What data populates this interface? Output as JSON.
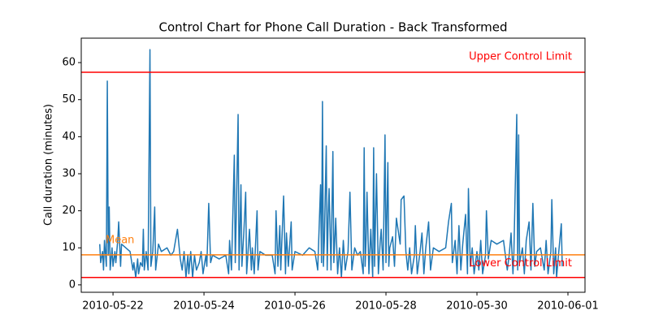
{
  "chart_data": {
    "type": "line",
    "title": "Control Chart for Phone Call Duration - Back Transformed",
    "y_label": "Call duration (minutes)",
    "x": [
      "2010-05-21T17:00",
      "2010-05-21T17:30",
      "2010-05-21T18:30",
      "2010-05-21T19:00",
      "2010-05-21T19:30",
      "2010-05-21T20:30",
      "2010-05-21T21:00",
      "2010-05-21T21:30",
      "2010-05-21T22:00",
      "2010-05-21T22:30",
      "2010-05-21T23:30",
      "2010-05-22T00:00",
      "2010-05-22T01:00",
      "2010-05-22T01:30",
      "2010-05-22T02:30",
      "2010-05-22T03:00",
      "2010-05-22T04:00",
      "2010-05-22T04:30",
      "2010-05-22T09:00",
      "2010-05-22T10:30",
      "2010-05-22T11:00",
      "2010-05-22T12:00",
      "2010-05-22T13:00",
      "2010-05-22T13:30",
      "2010-05-22T14:30",
      "2010-05-22T15:30",
      "2010-05-22T16:00",
      "2010-05-22T16:30",
      "2010-05-22T17:30",
      "2010-05-22T18:30",
      "2010-05-22T19:30",
      "2010-05-22T20:00",
      "2010-05-22T21:00",
      "2010-05-22T22:00",
      "2010-05-22T22:30",
      "2010-05-23T00:00",
      "2010-05-23T01:30",
      "2010-05-23T04:30",
      "2010-05-23T06:30",
      "2010-05-23T08:00",
      "2010-05-23T10:00",
      "2010-05-23T11:30",
      "2010-05-23T12:30",
      "2010-05-23T13:30",
      "2010-05-23T14:30",
      "2010-05-23T15:30",
      "2010-05-23T16:00",
      "2010-05-23T17:00",
      "2010-05-23T18:00",
      "2010-05-23T19:00",
      "2010-05-23T20:00",
      "2010-05-23T21:30",
      "2010-05-23T22:30",
      "2010-05-23T23:30",
      "2010-05-24T01:00",
      "2010-05-24T01:30",
      "2010-05-24T02:30",
      "2010-05-24T03:30",
      "2010-05-24T04:30",
      "2010-05-24T08:00",
      "2010-05-24T11:30",
      "2010-05-24T13:00",
      "2010-05-24T13:30",
      "2010-05-24T14:30",
      "2010-05-24T16:00",
      "2010-05-24T16:30",
      "2010-05-24T17:00",
      "2010-05-24T18:00",
      "2010-05-24T18:30",
      "2010-05-24T19:30",
      "2010-05-24T20:00",
      "2010-05-24T21:00",
      "2010-05-24T22:00",
      "2010-05-24T22:30",
      "2010-05-25T00:00",
      "2010-05-25T01:00",
      "2010-05-25T01:30",
      "2010-05-25T02:30",
      "2010-05-25T04:00",
      "2010-05-25T04:30",
      "2010-05-25T05:30",
      "2010-05-25T08:30",
      "2010-05-25T12:00",
      "2010-05-25T13:30",
      "2010-05-25T14:00",
      "2010-05-25T15:00",
      "2010-05-25T16:00",
      "2010-05-25T16:30",
      "2010-05-25T18:00",
      "2010-05-25T19:00",
      "2010-05-25T19:30",
      "2010-05-25T20:30",
      "2010-05-25T22:00",
      "2010-05-25T22:30",
      "2010-05-26T00:00",
      "2010-05-26T04:00",
      "2010-05-26T07:30",
      "2010-05-26T10:30",
      "2010-05-26T12:00",
      "2010-05-26T13:30",
      "2010-05-26T14:00",
      "2010-05-26T14:30",
      "2010-05-26T15:00",
      "2010-05-26T15:30",
      "2010-05-26T16:30",
      "2010-05-26T17:00",
      "2010-05-26T17:30",
      "2010-05-26T18:00",
      "2010-05-26T19:00",
      "2010-05-26T20:00",
      "2010-05-26T20:30",
      "2010-05-26T21:30",
      "2010-05-26T22:30",
      "2010-05-26T23:30",
      "2010-05-27T00:30",
      "2010-05-27T01:30",
      "2010-05-27T02:30",
      "2010-05-27T04:00",
      "2010-05-27T05:00",
      "2010-05-27T06:00",
      "2010-05-27T07:30",
      "2010-05-27T09:00",
      "2010-05-27T10:30",
      "2010-05-27T12:00",
      "2010-05-27T12:30",
      "2010-05-27T13:00",
      "2010-05-27T13:30",
      "2010-05-27T14:00",
      "2010-05-27T15:00",
      "2010-05-27T16:00",
      "2010-05-27T17:00",
      "2010-05-27T17:30",
      "2010-05-27T18:00",
      "2010-05-27T18:30",
      "2010-05-27T19:00",
      "2010-05-27T20:00",
      "2010-05-27T21:00",
      "2010-05-27T21:30",
      "2010-05-27T22:30",
      "2010-05-27T23:30",
      "2010-05-28T00:00",
      "2010-05-28T01:00",
      "2010-05-28T01:30",
      "2010-05-28T02:00",
      "2010-05-28T03:30",
      "2010-05-28T04:30",
      "2010-05-28T05:30",
      "2010-05-28T07:30",
      "2010-05-28T08:00",
      "2010-05-28T09:30",
      "2010-05-28T10:30",
      "2010-05-28T11:30",
      "2010-05-28T12:30",
      "2010-05-28T13:30",
      "2010-05-28T15:00",
      "2010-05-28T15:30",
      "2010-05-28T16:30",
      "2010-05-28T18:00",
      "2010-05-28T19:00",
      "2010-05-28T20:00",
      "2010-05-28T21:00",
      "2010-05-28T22:30",
      "2010-05-28T23:30",
      "2010-05-29T01:00",
      "2010-05-29T04:00",
      "2010-05-29T07:30",
      "2010-05-29T09:00",
      "2010-05-29T10:30",
      "2010-05-29T11:00",
      "2010-05-29T12:30",
      "2010-05-29T13:30",
      "2010-05-29T14:30",
      "2010-05-29T15:30",
      "2010-05-29T16:30",
      "2010-05-29T18:00",
      "2010-05-29T19:00",
      "2010-05-29T19:30",
      "2010-05-29T20:30",
      "2010-05-29T21:30",
      "2010-05-29T22:30",
      "2010-05-30T00:00",
      "2010-05-30T01:00",
      "2010-05-30T02:00",
      "2010-05-30T03:00",
      "2010-05-30T04:30",
      "2010-05-30T05:00",
      "2010-05-30T06:00",
      "2010-05-30T07:30",
      "2010-05-30T10:30",
      "2010-05-30T14:00",
      "2010-05-30T16:00",
      "2010-05-30T17:00",
      "2010-05-30T18:00",
      "2010-05-30T19:00",
      "2010-05-30T19:30",
      "2010-05-30T21:00",
      "2010-05-30T21:30",
      "2010-05-30T22:00",
      "2010-05-30T22:30",
      "2010-05-31T00:00",
      "2010-05-31T01:00",
      "2010-05-31T02:00",
      "2010-05-31T03:30",
      "2010-05-31T04:30",
      "2010-05-31T05:30",
      "2010-05-31T06:30",
      "2010-05-31T07:30",
      "2010-05-31T09:30",
      "2010-05-31T11:30",
      "2010-05-31T12:30",
      "2010-05-31T13:30",
      "2010-05-31T15:00",
      "2010-05-31T15:30",
      "2010-05-31T16:30",
      "2010-05-31T17:30",
      "2010-05-31T18:00",
      "2010-05-31T19:00",
      "2010-05-31T20:30",
      "2010-05-31T21:00"
    ],
    "series": [
      {
        "color": "#1f77b4",
        "values": [
          11,
          6,
          9,
          4,
          12,
          5,
          55,
          8,
          21,
          4,
          10,
          5,
          9,
          6,
          12,
          17,
          5,
          11,
          9,
          4,
          6,
          2,
          7,
          3,
          6,
          5,
          15,
          4,
          9,
          4,
          63.5,
          5,
          9,
          21,
          4,
          11,
          9,
          10,
          8,
          9,
          15,
          7,
          4,
          9,
          2,
          8,
          3,
          9,
          2,
          8,
          4,
          6,
          9,
          3,
          8,
          5,
          22,
          6,
          8,
          7,
          8,
          3,
          12,
          4,
          35,
          6,
          18,
          46,
          4,
          27,
          5,
          14,
          25,
          3,
          15,
          4,
          10,
          3,
          20,
          4,
          9,
          8,
          8,
          3,
          20,
          5,
          16,
          4,
          24,
          3,
          14,
          5,
          17,
          4,
          9,
          8,
          10,
          9,
          4,
          27,
          6,
          49.5,
          5,
          12,
          37.5,
          4,
          18,
          26,
          4,
          36,
          6,
          18,
          3,
          10,
          2,
          12,
          4,
          9,
          25,
          4,
          10,
          8,
          9,
          3,
          37,
          5,
          12,
          25,
          3,
          15,
          2,
          37,
          5,
          18,
          30,
          3,
          12,
          15,
          4,
          40.5,
          6,
          33,
          5,
          10,
          13,
          5,
          18,
          11,
          23,
          24,
          9,
          4,
          10,
          3,
          8,
          16,
          3,
          9,
          14,
          3,
          10,
          17,
          4,
          10,
          9,
          10,
          17,
          22,
          6,
          12,
          3,
          16,
          4,
          11,
          19,
          3,
          26,
          5,
          10,
          3,
          9,
          4,
          12,
          3,
          8,
          20,
          7,
          12,
          11,
          12,
          4,
          8,
          14,
          3,
          9,
          46,
          4,
          40.5,
          6,
          10,
          3,
          12,
          17,
          4,
          22,
          5,
          9,
          10,
          4,
          12,
          3,
          9,
          23,
          3,
          10,
          2,
          8,
          16.5,
          5
        ]
      }
    ],
    "hlines": [
      {
        "name": "Upper Control Limit",
        "value": 57.4,
        "color": "#ff0000"
      },
      {
        "name": "Mean",
        "value": 8.1,
        "color": "#ff7f0e"
      },
      {
        "name": "Lower Control Limit",
        "value": 2.0,
        "color": "#ff0000"
      }
    ],
    "xlim": [
      "2010-05-21T07:15",
      "2010-06-01T09:00"
    ],
    "xticks": [
      "2010-05-22",
      "2010-05-24",
      "2010-05-26",
      "2010-05-28",
      "2010-05-30",
      "2010-06-01"
    ],
    "ylim": [
      -2,
      66.6
    ],
    "yticks": [
      0,
      10,
      20,
      30,
      40,
      50,
      60
    ]
  }
}
